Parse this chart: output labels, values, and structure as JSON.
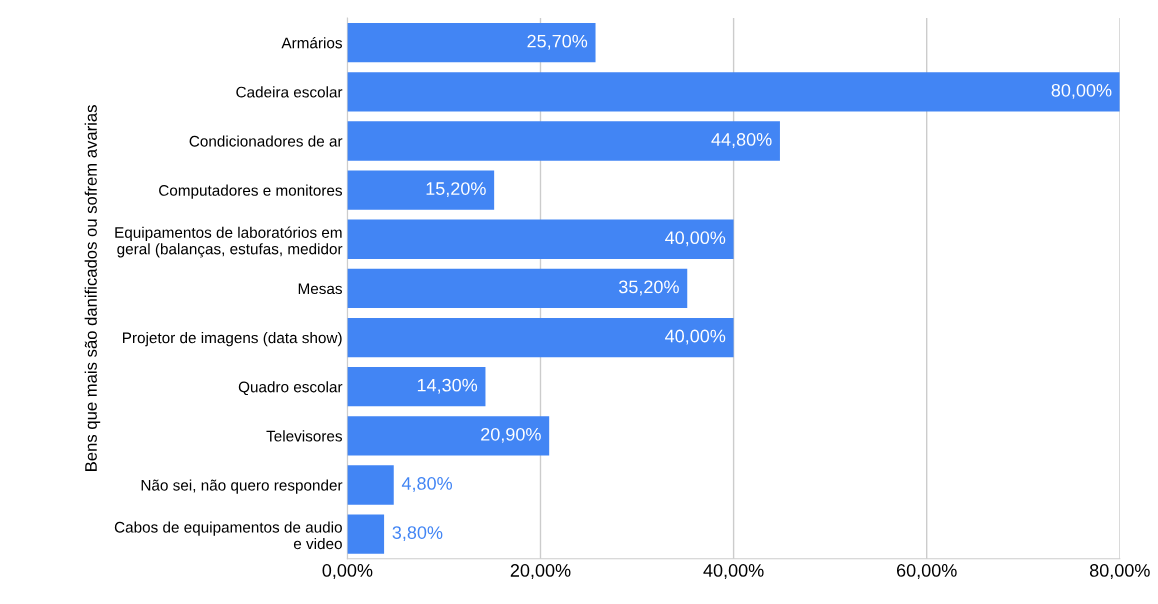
{
  "chart_data": {
    "type": "bar",
    "orientation": "horizontal",
    "ylabel": "Bens que mais são danificados ou sofrem avarias",
    "categories": [
      "Armários",
      "Cadeira escolar",
      "Condicionadores de ar",
      "Computadores e monitores",
      "Equipamentos de laboratórios em\ngeral (balanças, estufas, medidor",
      "Mesas",
      "Projetor de imagens (data show)",
      "Quadro escolar",
      "Televisores",
      "Não sei, não quero responder",
      "Cabos de equipamentos de audio\ne video"
    ],
    "values": [
      25.7,
      80.0,
      44.8,
      15.2,
      40.0,
      35.2,
      40.0,
      14.3,
      20.9,
      4.8,
      3.8
    ],
    "value_labels": [
      "25,70%",
      "80,00%",
      "44,80%",
      "15,20%",
      "40,00%",
      "35,20%",
      "40,00%",
      "14,30%",
      "20,90%",
      "4,80%",
      "3,80%"
    ],
    "color": "#4285f4",
    "xlim": [
      0,
      80
    ],
    "xticks": [
      {
        "value": 0,
        "label": "0,00%"
      },
      {
        "value": 20,
        "label": "20,00%"
      },
      {
        "value": 40,
        "label": "40,00%"
      },
      {
        "value": 60,
        "label": "60,00%"
      },
      {
        "value": 80,
        "label": "80,00%"
      }
    ],
    "grid": "x"
  }
}
